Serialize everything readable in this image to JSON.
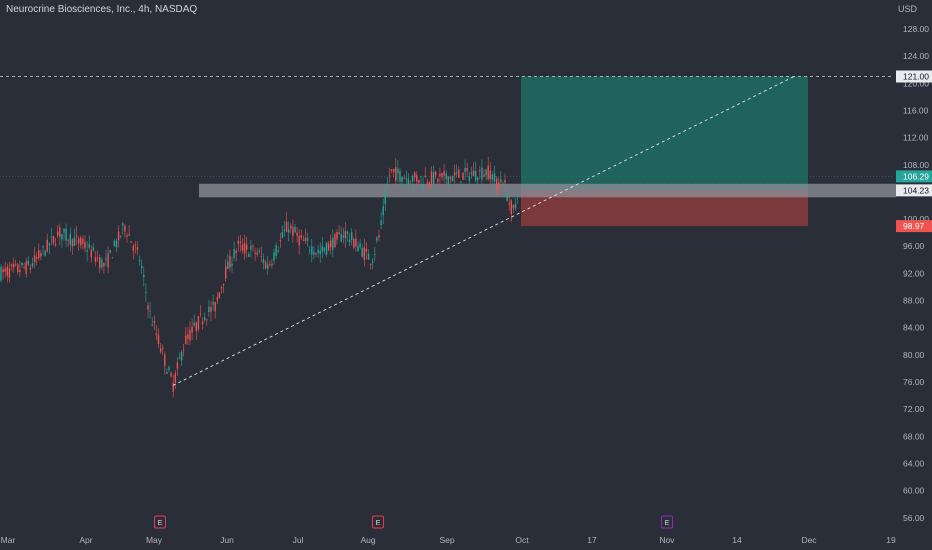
{
  "header": {
    "title": "Neurocrine Biosciences, Inc., 4h, NASDAQ",
    "currency": "USD"
  },
  "colors": {
    "background": "#2a2e39",
    "up": "#26a69a",
    "down": "#ef5350",
    "profit_zone": "#1f6b63",
    "loss_zone": "#8a3b3f",
    "resistance_zone": "#8f929a",
    "axis_text": "#b2b5be",
    "earnings_red": "#f23645",
    "earnings_purple": "#9c27b0"
  },
  "chart_data": {
    "type": "candlestick",
    "y_axis": {
      "range": [
        54.5,
        130.5
      ],
      "ticks": [
        "128.00",
        "124.00",
        "120.00",
        "116.00",
        "112.00",
        "108.00",
        "104.00",
        "100.00",
        "96.00",
        "92.00",
        "88.00",
        "84.00",
        "80.00",
        "76.00",
        "72.00",
        "68.00",
        "64.00",
        "60.00",
        "56.00"
      ]
    },
    "x_axis": {
      "ticks": [
        "Mar",
        "Apr",
        "May",
        "Jun",
        "Jul",
        "Aug",
        "Sep",
        "Oct",
        "17",
        "Nov",
        "14",
        "Dec",
        "19"
      ]
    },
    "price_anchors": [
      [
        "Mar",
        92
      ],
      [
        "Mar+",
        93
      ],
      [
        "Apr-",
        98
      ],
      [
        "Apr",
        96
      ],
      [
        "Apr+",
        93
      ],
      [
        "Apr++",
        99
      ],
      [
        "May-",
        94
      ],
      [
        "May-+",
        86
      ],
      [
        "May",
        75.5
      ],
      [
        "May+",
        82
      ],
      [
        "May++",
        86
      ],
      [
        "Jun-",
        87
      ],
      [
        "Jun-+",
        92
      ],
      [
        "Jun",
        96
      ],
      [
        "Jun+",
        95
      ],
      [
        "Jun++",
        93
      ],
      [
        "Jul-",
        99
      ],
      [
        "Jul",
        97
      ],
      [
        "Jul+",
        95
      ],
      [
        "Jul++",
        98
      ],
      [
        "Aug-",
        95
      ],
      [
        "Aug-+",
        94
      ],
      [
        "Aug",
        98
      ],
      [
        "Aug+",
        107
      ],
      [
        "Aug++",
        106
      ],
      [
        "Sep-",
        106
      ],
      [
        "Sep",
        107
      ],
      [
        "Sep+",
        105
      ],
      [
        "Sep++",
        106
      ],
      [
        "Oct-",
        102
      ],
      [
        "Oct--",
        101
      ],
      [
        "Oct",
        106.29
      ]
    ],
    "markers": {
      "target": "121.00",
      "last_price": "106.29",
      "resistance": "104.23",
      "stop": "98.97"
    },
    "levels": {
      "target": 121.0,
      "last_price": 106.29,
      "resistance_top": 105.2,
      "resistance_bottom": 103.2,
      "entry": 104.3,
      "stop": 98.97
    },
    "trendline": {
      "from": [
        "May",
        75.5
      ],
      "to": [
        "Dec",
        121.0
      ]
    },
    "earnings_events": [
      {
        "label": "E",
        "at": "May",
        "color": "red"
      },
      {
        "label": "E",
        "at": "Aug",
        "color": "red"
      },
      {
        "label": "E",
        "at": "Nov",
        "color": "purple"
      }
    ]
  }
}
